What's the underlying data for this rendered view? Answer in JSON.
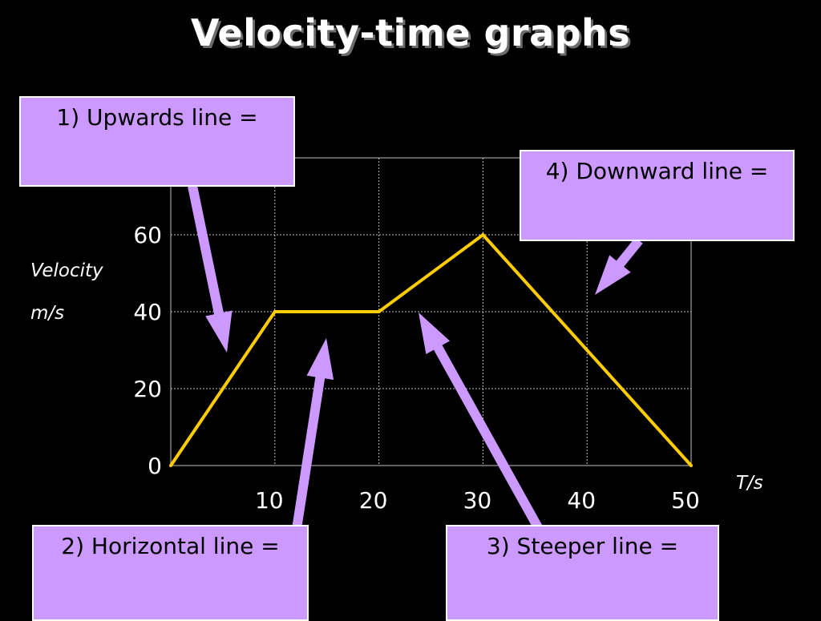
{
  "title": "Velocity-time graphs",
  "callouts": {
    "upwards": "1) Upwards line =",
    "horizontal": "2) Horizontal line =",
    "steeper": "3) Steeper line =",
    "downward": "4) Downward line ="
  },
  "colors": {
    "background": "#000000",
    "line": "#ffcc00",
    "callout_fill": "#cc99ff",
    "arrow": "#cc99ff",
    "text": "#ffffff",
    "grid": "#bfbfbf"
  },
  "chart_data": {
    "type": "line",
    "title": "Velocity-time graphs",
    "ylabel": "Velocity",
    "yunit": "m/s",
    "xlabel": "T/s",
    "x": [
      0,
      10,
      20,
      30,
      50
    ],
    "y": [
      0,
      40,
      40,
      60,
      0
    ],
    "xlim": [
      0,
      50
    ],
    "ylim": [
      0,
      80
    ],
    "xticks": [
      "10",
      "20",
      "30",
      "40",
      "50"
    ],
    "xtick_values": [
      10,
      20,
      30,
      40,
      50
    ],
    "yticks": [
      "0",
      "20",
      "40",
      "60"
    ],
    "ytick_values": [
      0,
      20,
      40,
      60
    ],
    "grid": true
  }
}
